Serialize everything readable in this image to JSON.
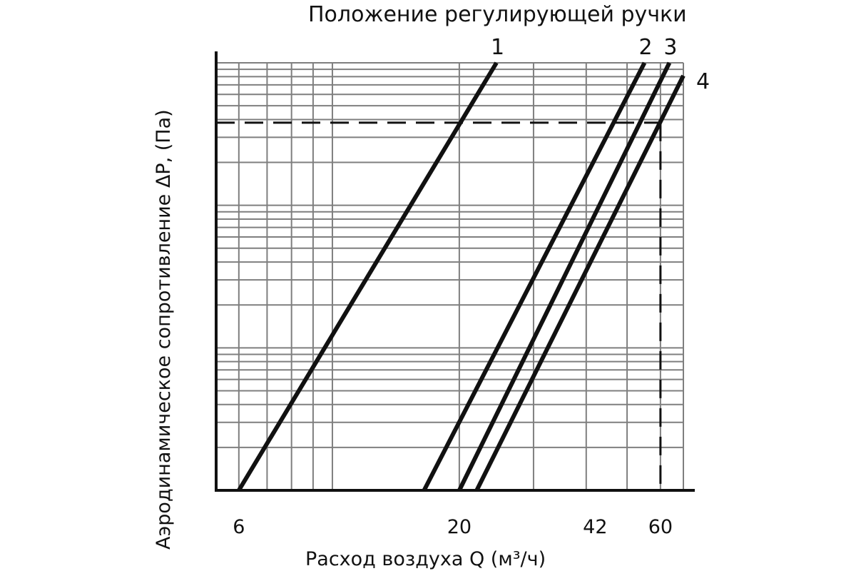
{
  "chart_data": {
    "type": "line",
    "title": "Положение регулирующей ручки",
    "xlabel": "Расход воздуха Q (м³/ч)",
    "ylabel": "Аэродинамическое сопротивление ΔP, (Па)",
    "x_scale": "log",
    "x_ticks": [
      6,
      20,
      42,
      60
    ],
    "xlim": [
      5.3,
      68
    ],
    "y_ticks": [],
    "grid": true,
    "series": [
      {
        "name": "1",
        "points": [
          [
            6,
            0
          ],
          [
            24.5,
            1
          ]
        ]
      },
      {
        "name": "2",
        "points": [
          [
            16.5,
            0
          ],
          [
            55,
            1
          ]
        ]
      },
      {
        "name": "3",
        "points": [
          [
            20,
            0
          ],
          [
            63,
            1
          ]
        ]
      },
      {
        "name": "4",
        "points": [
          [
            22,
            0
          ],
          [
            68,
            0.97
          ]
        ]
      }
    ],
    "reference_level": 0.86,
    "reference_x": 60
  }
}
